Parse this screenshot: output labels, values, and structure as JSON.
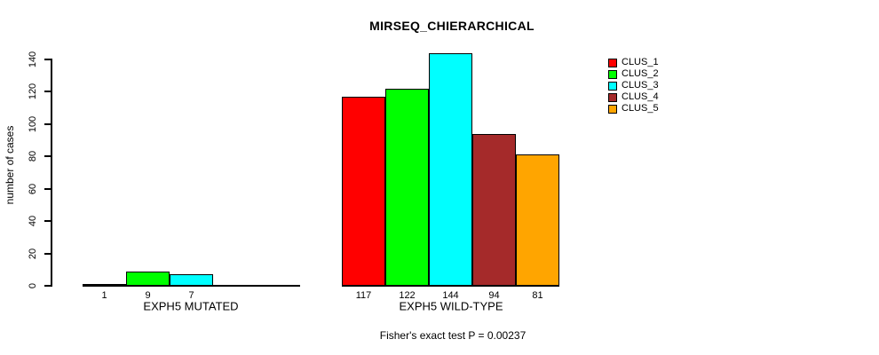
{
  "chart_data": {
    "type": "bar",
    "title": "MIRSEQ_CHIERARCHICAL",
    "ylabel": "number of cases",
    "xlabel": "",
    "ylim": [
      0,
      140
    ],
    "y_ticks": [
      0,
      20,
      40,
      60,
      80,
      100,
      120,
      140
    ],
    "grid": false,
    "legend_position": "top-right",
    "legend": [
      {
        "label": "CLUS_1",
        "color": "#ff0000"
      },
      {
        "label": "CLUS_2",
        "color": "#00ff00"
      },
      {
        "label": "CLUS_3",
        "color": "#00ffff"
      },
      {
        "label": "CLUS_4",
        "color": "#a52a2a"
      },
      {
        "label": "CLUS_5",
        "color": "#ffa500"
      }
    ],
    "groups": [
      {
        "label": "EXPH5 MUTATED",
        "values": [
          1,
          9,
          7,
          0,
          0
        ],
        "bar_labels": [
          "1",
          "9",
          "7",
          "",
          ""
        ]
      },
      {
        "label": "EXPH5 WILD-TYPE",
        "values": [
          117,
          122,
          144,
          94,
          81
        ],
        "bar_labels": [
          "117",
          "122",
          "144",
          "94",
          "81"
        ]
      }
    ],
    "footnote": "Fisher's exact test P = 0.00237"
  }
}
